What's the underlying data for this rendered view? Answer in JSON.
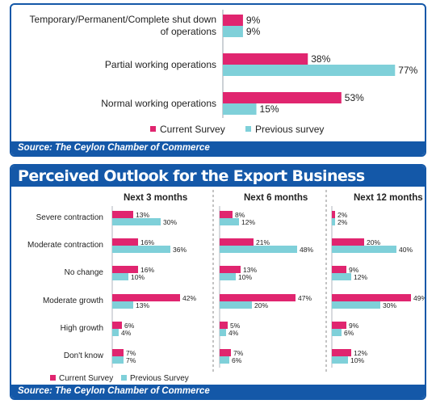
{
  "colors": {
    "current": "#e0256f",
    "previous": "#7fd0d9",
    "frame": "#1458a8"
  },
  "top_chart": {
    "source": "Source: The Ceylon Chamber of Commerce",
    "legend": {
      "current": "Current Survey",
      "previous": "Previous survey"
    }
  },
  "bottom_chart": {
    "title": "Perceived Outlook for the Export Business",
    "source": "Source: The Ceylon Chamber of Commerce",
    "legend": {
      "current": "Current Survey",
      "previous": "Previous Survey"
    }
  },
  "chart_data": [
    {
      "type": "bar",
      "orientation": "horizontal",
      "categories": [
        [
          "Temporary/Permanent/Complete shut down",
          "of operations"
        ],
        [
          "Partial working operations"
        ],
        [
          "Normal working operations"
        ]
      ],
      "series": [
        {
          "name": "Current Survey",
          "values": [
            9,
            38,
            53
          ],
          "labels": [
            "9%",
            "38%",
            "53%"
          ]
        },
        {
          "name": "Previous survey",
          "values": [
            9,
            77,
            15
          ],
          "labels": [
            "9%",
            "77%",
            "15%"
          ]
        }
      ],
      "xlim": [
        0,
        80
      ],
      "legend": "bottom"
    },
    {
      "type": "bar",
      "orientation": "horizontal",
      "title": "Perceived Outlook for the Export Business",
      "categories": [
        "Severe contraction",
        "Moderate contraction",
        "No change",
        "Moderate growth",
        "High growth",
        "Don't know"
      ],
      "panels": [
        {
          "title": "Next 3 months",
          "series": [
            {
              "name": "Current Survey",
              "values": [
                13,
                16,
                16,
                42,
                6,
                7
              ],
              "labels": [
                "13%",
                "16%",
                "16%",
                "42%",
                "6%",
                "7%"
              ]
            },
            {
              "name": "Previous Survey",
              "values": [
                30,
                36,
                10,
                13,
                4,
                7
              ],
              "labels": [
                "30%",
                "36%",
                "10%",
                "13%",
                "4%",
                "7%"
              ]
            }
          ]
        },
        {
          "title": "Next 6 months",
          "series": [
            {
              "name": "Current Survey",
              "values": [
                8,
                21,
                13,
                47,
                5,
                7
              ],
              "labels": [
                "8%",
                "21%",
                "13%",
                "47%",
                "5%",
                "7%"
              ]
            },
            {
              "name": "Previous Survey",
              "values": [
                12,
                48,
                10,
                20,
                4,
                6
              ],
              "labels": [
                "12%",
                "48%",
                "10%",
                "20%",
                "4%",
                "6%"
              ]
            }
          ]
        },
        {
          "title": "Next 12 months",
          "series": [
            {
              "name": "Current Survey",
              "values": [
                2,
                20,
                9,
                49,
                9,
                12
              ],
              "labels": [
                "2%",
                "20%",
                "9%",
                "49%",
                "9%",
                "12%"
              ]
            },
            {
              "name": "Previous Survey",
              "values": [
                2,
                40,
                12,
                30,
                6,
                10
              ],
              "labels": [
                "2%",
                "40%",
                "12%",
                "30%",
                "6%",
                "10%"
              ]
            }
          ]
        }
      ],
      "legend": "bottom-left"
    }
  ]
}
